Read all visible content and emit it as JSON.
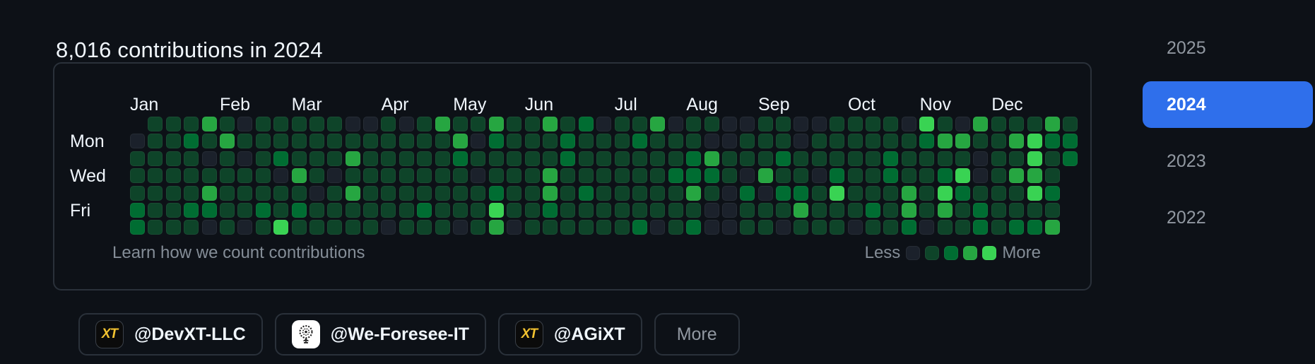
{
  "header": {
    "title": "8,016 contributions in 2024"
  },
  "chart_data": {
    "type": "heatmap",
    "title": "8,016 contributions in 2024",
    "total_contributions": "8,016",
    "year": "2024",
    "months": [
      {
        "label": "Jan",
        "col": 0
      },
      {
        "label": "Feb",
        "col": 5
      },
      {
        "label": "Mar",
        "col": 9
      },
      {
        "label": "Apr",
        "col": 14
      },
      {
        "label": "May",
        "col": 18
      },
      {
        "label": "Jun",
        "col": 22
      },
      {
        "label": "Jul",
        "col": 27
      },
      {
        "label": "Aug",
        "col": 31
      },
      {
        "label": "Sep",
        "col": 35
      },
      {
        "label": "Oct",
        "col": 40
      },
      {
        "label": "Nov",
        "col": 44
      },
      {
        "label": "Dec",
        "col": 48
      }
    ],
    "day_labels": [
      {
        "label": "Mon",
        "row": 1
      },
      {
        "label": "Wed",
        "row": 3
      },
      {
        "label": "Fri",
        "row": 5
      }
    ],
    "rows_order": [
      "Sun",
      "Mon",
      "Tue",
      "Wed",
      "Thu",
      "Fri",
      "Sat"
    ],
    "weeks": [
      "-011122",
      "1111111",
      "1111111",
      "1211121",
      "3101320",
      "1311111",
      "0101110",
      "1111121",
      "1120114",
      "1113121",
      "1111011",
      "1110111",
      "0131311",
      "0111111",
      "1111110",
      "0111111",
      "1111121",
      "3111111",
      "1321110",
      "1010111",
      "3211243",
      "1111110",
      "1111111",
      "3113321",
      "1221111",
      "2111211",
      "0111111",
      "1111111",
      "1211112",
      "3111110",
      "0112111",
      "1122312",
      "1032100",
      "0011000",
      "0110211",
      "1113011",
      "1121210",
      "0011231",
      "0110111",
      "1112411",
      "1111110",
      "1111121",
      "1122111",
      "0111332",
      "4211110",
      "1312431",
      "0314211",
      "3100122",
      "1111111",
      "1313112",
      "1443412",
      "3211213",
      "122----"
    ],
    "level_colors": [
      "#1b212b",
      "#0e4429",
      "#006d32",
      "#26a641",
      "#39d353"
    ],
    "legend": {
      "less": "Less",
      "more": "More"
    },
    "grid": "on",
    "legend_position": "bottom-right"
  },
  "footer": {
    "learn_link": "Learn how we count contributions"
  },
  "years": [
    {
      "label": "2025",
      "selected": false
    },
    {
      "label": "2024",
      "selected": true
    },
    {
      "label": "2023",
      "selected": false
    },
    {
      "label": "2022",
      "selected": false
    }
  ],
  "org_filters": [
    {
      "label": "@DevXT-LLC",
      "icon": "xt-logo"
    },
    {
      "label": "@We-Foresee-IT",
      "icon": "foresee-logo"
    },
    {
      "label": "@AGiXT",
      "icon": "xt-logo"
    },
    {
      "label": "More",
      "icon": null
    }
  ],
  "colors": {
    "background": "#0d1117",
    "accent_blue": "#2f6feb",
    "text_primary": "#f0f6fc",
    "text_muted": "#9198a1",
    "card_border": "#2a313a",
    "avatar_yellow": "#f2c230"
  }
}
